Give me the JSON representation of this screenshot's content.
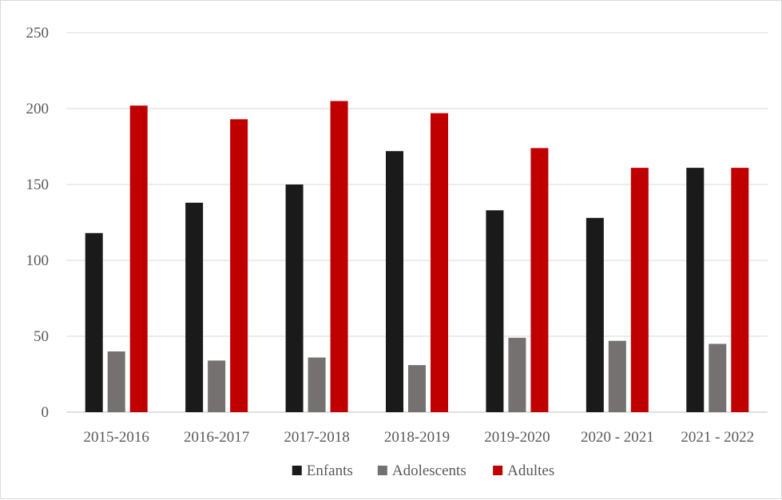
{
  "chart_data": {
    "type": "bar",
    "categories": [
      "2015-2016",
      "2016-2017",
      "2017-2018",
      "2018-2019",
      "2019-2020",
      "2020 - 2021",
      "2021 - 2022"
    ],
    "series": [
      {
        "name": "Enfants",
        "color": "#1a1a1a",
        "values": [
          118,
          138,
          150,
          172,
          133,
          128,
          161
        ]
      },
      {
        "name": "Adolescents",
        "color": "#767171",
        "values": [
          40,
          34,
          36,
          31,
          49,
          47,
          45
        ]
      },
      {
        "name": "Adultes",
        "color": "#c00000",
        "values": [
          202,
          193,
          205,
          197,
          174,
          161,
          161
        ]
      }
    ],
    "ylim": [
      0,
      250
    ],
    "yticks": [
      0,
      50,
      100,
      150,
      200,
      250
    ],
    "grid": true,
    "legend": "bottom-center"
  }
}
